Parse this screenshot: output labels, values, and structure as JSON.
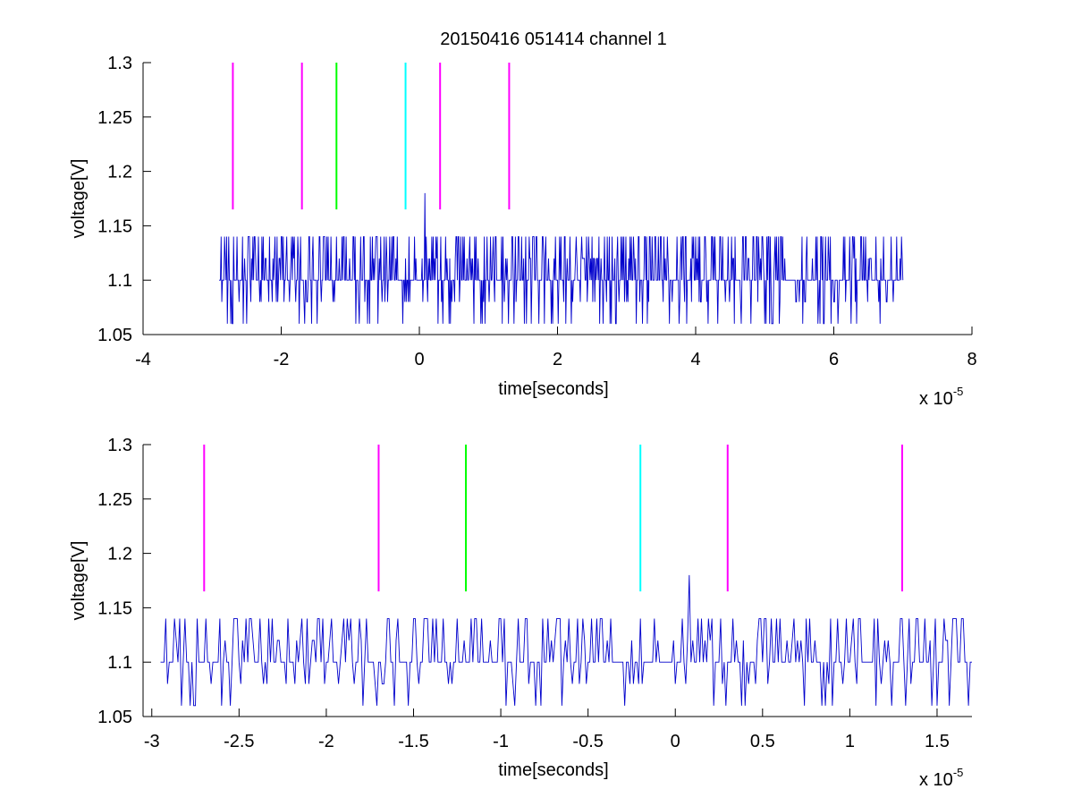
{
  "figure": {
    "title": "20150416 051414 channel 1"
  },
  "colors": {
    "signal": "#0000cc",
    "magenta": "#ff00ff",
    "green": "#00ff00",
    "cyan": "#00ffff",
    "axis": "#000000"
  },
  "chart_data": [
    {
      "type": "line",
      "title": "20150416 051414 channel 1",
      "xlabel": "time[seconds]",
      "ylabel": "voltage[V]",
      "x_exponent_label": "x 10",
      "x_exponent": "-5",
      "xlim": [
        -4,
        8
      ],
      "ylim": [
        1.05,
        1.3
      ],
      "xticks": [
        -4,
        -2,
        0,
        2,
        4,
        6,
        8
      ],
      "xtick_labels": [
        "-4",
        "-2",
        "0",
        "2",
        "4",
        "6",
        "8"
      ],
      "yticks": [
        1.05,
        1.1,
        1.15,
        1.2,
        1.25,
        1.3
      ],
      "ytick_labels": [
        "1.05",
        "1.1",
        "1.15",
        "1.2",
        "1.25",
        "1.3"
      ],
      "grid": false,
      "series": [
        {
          "color": "#0000cc",
          "x_range": [
            -2.9,
            7.0
          ],
          "levels": [
            1.06,
            1.08,
            1.1,
            1.12,
            1.14
          ],
          "baseline": 1.1,
          "spike": {
            "x": 0.08,
            "y": 1.18
          },
          "description_of_data": "noisy digitized voltage stepping between 1.06 and 1.14 V around 1.1 V"
        }
      ],
      "markers": [
        {
          "x": -2.7,
          "y_range": [
            1.165,
            1.3
          ],
          "color": "#ff00ff"
        },
        {
          "x": -1.7,
          "y_range": [
            1.165,
            1.3
          ],
          "color": "#ff00ff"
        },
        {
          "x": -1.2,
          "y_range": [
            1.165,
            1.3
          ],
          "color": "#00ff00"
        },
        {
          "x": -0.2,
          "y_range": [
            1.165,
            1.3
          ],
          "color": "#00ffff"
        },
        {
          "x": 0.3,
          "y_range": [
            1.165,
            1.3
          ],
          "color": "#ff00ff"
        },
        {
          "x": 1.3,
          "y_range": [
            1.165,
            1.3
          ],
          "color": "#ff00ff"
        }
      ]
    },
    {
      "type": "line",
      "title": "",
      "xlabel": "time[seconds]",
      "ylabel": "voltage[V]",
      "x_exponent_label": "x 10",
      "x_exponent": "-5",
      "xlim": [
        -3.05,
        1.7
      ],
      "ylim": [
        1.05,
        1.3
      ],
      "xticks": [
        -3,
        -2.5,
        -2,
        -1.5,
        -1,
        -0.5,
        0,
        0.5,
        1,
        1.5
      ],
      "xtick_labels": [
        "-3",
        "-2.5",
        "-2",
        "-1.5",
        "-1",
        "-0.5",
        "0",
        "0.5",
        "1",
        "1.5"
      ],
      "yticks": [
        1.05,
        1.1,
        1.15,
        1.2,
        1.25,
        1.3
      ],
      "ytick_labels": [
        "1.05",
        "1.1",
        "1.15",
        "1.2",
        "1.25",
        "1.3"
      ],
      "grid": false,
      "series": [
        {
          "color": "#0000cc",
          "x_range": [
            -2.95,
            1.7
          ],
          "levels": [
            1.06,
            1.08,
            1.1,
            1.12,
            1.14
          ],
          "baseline": 1.1,
          "spike": {
            "x": 0.08,
            "y": 1.18
          },
          "description_of_data": "zoomed view of the same noisy voltage trace"
        }
      ],
      "markers": [
        {
          "x": -2.7,
          "y_range": [
            1.165,
            1.3
          ],
          "color": "#ff00ff"
        },
        {
          "x": -1.7,
          "y_range": [
            1.165,
            1.3
          ],
          "color": "#ff00ff"
        },
        {
          "x": -1.2,
          "y_range": [
            1.165,
            1.3
          ],
          "color": "#00ff00"
        },
        {
          "x": -0.2,
          "y_range": [
            1.165,
            1.3
          ],
          "color": "#00ffff"
        },
        {
          "x": 0.3,
          "y_range": [
            1.165,
            1.3
          ],
          "color": "#ff00ff"
        },
        {
          "x": 1.3,
          "y_range": [
            1.165,
            1.3
          ],
          "color": "#ff00ff"
        }
      ]
    }
  ]
}
